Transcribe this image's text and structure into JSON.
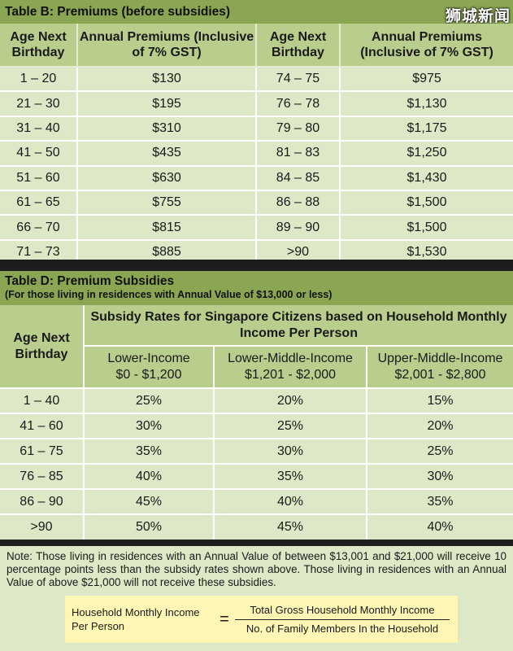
{
  "watermark": "狮城新闻",
  "table_b": {
    "title": "Table B: Premiums (before subsidies)",
    "headers": [
      "Age Next Birthday",
      "Annual Premiums (Inclusive of 7% GST)",
      "Age Next Birthday",
      "Annual Premiums (Inclusive of 7% GST)"
    ],
    "rows": [
      [
        "1 – 20",
        "$130",
        "74 – 75",
        "$975"
      ],
      [
        "21 – 30",
        "$195",
        "76 – 78",
        "$1,130"
      ],
      [
        "31 – 40",
        "$310",
        "79 – 80",
        "$1,175"
      ],
      [
        "41 – 50",
        "$435",
        "81 – 83",
        "$1,250"
      ],
      [
        "51 – 60",
        "$630",
        "84 – 85",
        "$1,430"
      ],
      [
        "61 – 65",
        "$755",
        "86 – 88",
        "$1,500"
      ],
      [
        "66 – 70",
        "$815",
        "89 – 90",
        "$1,500"
      ],
      [
        "71 – 73",
        "$885",
        ">90",
        "$1,530"
      ]
    ]
  },
  "table_d": {
    "title": "Table D: Premium Subsidies",
    "subtitle": "(For those living in residences with Annual Value of $13,000 or less)",
    "age_header": "Age Next Birthday",
    "span_header": "Subsidy Rates for Singapore Citizens based on Household Monthly Income Per Person",
    "income_groups": [
      {
        "name": "Lower-Income",
        "range": "$0 - $1,200"
      },
      {
        "name": "Lower-Middle-Income",
        "range": "$1,201 - $2,000"
      },
      {
        "name": "Upper-Middle-Income",
        "range": "$2,001 - $2,800"
      }
    ],
    "rows": [
      [
        "1 – 40",
        "25%",
        "20%",
        "15%"
      ],
      [
        "41 – 60",
        "30%",
        "25%",
        "20%"
      ],
      [
        "61 – 75",
        "35%",
        "30%",
        "25%"
      ],
      [
        "76 – 85",
        "40%",
        "35%",
        "30%"
      ],
      [
        "86 – 90",
        "45%",
        "40%",
        "35%"
      ],
      [
        ">90",
        "50%",
        "45%",
        "40%"
      ]
    ]
  },
  "note": "Note: Those living in residences with an Annual Value of between $13,001 and $21,000 will receive 10 percentage points less than the subsidy rates shown above. Those living in residences with an Annual Value of above $21,000 will not receive these subsidies.",
  "formula": {
    "left": "Household Monthly Income Per Person",
    "equals": "=",
    "numerator": "Total Gross Household Monthly Income",
    "denominator": "No. of Family Members In the Household"
  }
}
